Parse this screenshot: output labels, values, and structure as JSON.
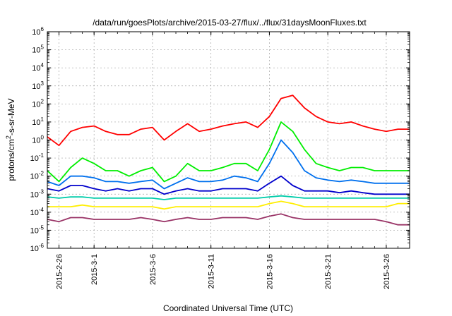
{
  "chart_data": {
    "type": "line",
    "title": "/data/run/goesPlots/archive/2015-03-27/flux/../flux/31daysMoonFluxes.txt",
    "xlabel": "Coordinated Universal Time (UTC)",
    "ylabel_parts": {
      "pre": "protons/cm",
      "sup": "2",
      "post": "-s-sr-MeV"
    },
    "x_range": [
      "2015-02-25",
      "2015-03-28"
    ],
    "x_ticks": [
      "2015-2-26",
      "2015-3-1",
      "2015-3-6",
      "2015-3-11",
      "2015-3-16",
      "2015-3-21",
      "2015-3-26"
    ],
    "y_scale": "log",
    "ylim": [
      1e-06,
      1000000.0
    ],
    "y_ticks": [
      {
        "base": "10",
        "exp": "-6"
      },
      {
        "base": "10",
        "exp": "-5"
      },
      {
        "base": "10",
        "exp": "-4"
      },
      {
        "base": "10",
        "exp": "-3"
      },
      {
        "base": "10",
        "exp": "-2"
      },
      {
        "base": "10",
        "exp": "-1"
      },
      {
        "base": "10",
        "exp": "0"
      },
      {
        "base": "10",
        "exp": "1"
      },
      {
        "base": "10",
        "exp": "2"
      },
      {
        "base": "10",
        "exp": "3"
      },
      {
        "base": "10",
        "exp": "4"
      },
      {
        "base": "10",
        "exp": "5"
      },
      {
        "base": "10",
        "exp": "6"
      }
    ],
    "grid": true,
    "series": [
      {
        "color": "#ff0000",
        "x": [
          "2015-02-25",
          "2015-02-26",
          "2015-02-27",
          "2015-02-28",
          "2015-03-01",
          "2015-03-02",
          "2015-03-03",
          "2015-03-04",
          "2015-03-05",
          "2015-03-06",
          "2015-03-07",
          "2015-03-08",
          "2015-03-09",
          "2015-03-10",
          "2015-03-11",
          "2015-03-12",
          "2015-03-13",
          "2015-03-14",
          "2015-03-15",
          "2015-03-16",
          "2015-03-17",
          "2015-03-18",
          "2015-03-19",
          "2015-03-20",
          "2015-03-21",
          "2015-03-22",
          "2015-03-23",
          "2015-03-24",
          "2015-03-25",
          "2015-03-26",
          "2015-03-27",
          "2015-03-28"
        ],
        "y": [
          1.5,
          0.5,
          3,
          5,
          6,
          3,
          2,
          2,
          4,
          5,
          1,
          3,
          8,
          3,
          4,
          6,
          8,
          10,
          5,
          20,
          200,
          300,
          60,
          20,
          10,
          8,
          10,
          6,
          4,
          3,
          4,
          4
        ]
      },
      {
        "color": "#00ee00",
        "x": [
          "2015-02-25",
          "2015-02-26",
          "2015-02-27",
          "2015-02-28",
          "2015-03-01",
          "2015-03-02",
          "2015-03-03",
          "2015-03-04",
          "2015-03-05",
          "2015-03-06",
          "2015-03-07",
          "2015-03-08",
          "2015-03-09",
          "2015-03-10",
          "2015-03-11",
          "2015-03-12",
          "2015-03-13",
          "2015-03-14",
          "2015-03-15",
          "2015-03-16",
          "2015-03-17",
          "2015-03-18",
          "2015-03-19",
          "2015-03-20",
          "2015-03-21",
          "2015-03-22",
          "2015-03-23",
          "2015-03-24",
          "2015-03-25",
          "2015-03-26",
          "2015-03-27",
          "2015-03-28"
        ],
        "y": [
          0.02,
          0.005,
          0.03,
          0.1,
          0.05,
          0.02,
          0.02,
          0.01,
          0.02,
          0.03,
          0.005,
          0.01,
          0.05,
          0.02,
          0.02,
          0.03,
          0.05,
          0.05,
          0.02,
          0.3,
          10,
          3,
          0.3,
          0.05,
          0.03,
          0.02,
          0.03,
          0.03,
          0.02,
          0.02,
          0.02,
          0.02
        ]
      },
      {
        "color": "#0070ee",
        "x": [
          "2015-02-25",
          "2015-02-26",
          "2015-02-27",
          "2015-02-28",
          "2015-03-01",
          "2015-03-02",
          "2015-03-03",
          "2015-03-04",
          "2015-03-05",
          "2015-03-06",
          "2015-03-07",
          "2015-03-08",
          "2015-03-09",
          "2015-03-10",
          "2015-03-11",
          "2015-03-12",
          "2015-03-13",
          "2015-03-14",
          "2015-03-15",
          "2015-03-16",
          "2015-03-17",
          "2015-03-18",
          "2015-03-19",
          "2015-03-20",
          "2015-03-21",
          "2015-03-22",
          "2015-03-23",
          "2015-03-24",
          "2015-03-25",
          "2015-03-26",
          "2015-03-27",
          "2015-03-28"
        ],
        "y": [
          0.005,
          0.003,
          0.01,
          0.01,
          0.008,
          0.005,
          0.005,
          0.004,
          0.005,
          0.006,
          0.002,
          0.004,
          0.008,
          0.005,
          0.005,
          0.006,
          0.01,
          0.008,
          0.005,
          0.05,
          1,
          0.2,
          0.02,
          0.008,
          0.006,
          0.005,
          0.006,
          0.005,
          0.004,
          0.004,
          0.004,
          0.004
        ]
      },
      {
        "color": "#0000cc",
        "x": [
          "2015-02-25",
          "2015-02-26",
          "2015-02-27",
          "2015-02-28",
          "2015-03-01",
          "2015-03-02",
          "2015-03-03",
          "2015-03-04",
          "2015-03-05",
          "2015-03-06",
          "2015-03-07",
          "2015-03-08",
          "2015-03-09",
          "2015-03-10",
          "2015-03-11",
          "2015-03-12",
          "2015-03-13",
          "2015-03-14",
          "2015-03-15",
          "2015-03-16",
          "2015-03-17",
          "2015-03-18",
          "2015-03-19",
          "2015-03-20",
          "2015-03-21",
          "2015-03-22",
          "2015-03-23",
          "2015-03-24",
          "2015-03-25",
          "2015-03-26",
          "2015-03-27",
          "2015-03-28"
        ],
        "y": [
          0.002,
          0.0015,
          0.003,
          0.003,
          0.002,
          0.0015,
          0.002,
          0.0015,
          0.002,
          0.002,
          0.001,
          0.0015,
          0.002,
          0.0015,
          0.0015,
          0.002,
          0.002,
          0.002,
          0.0015,
          0.004,
          0.01,
          0.003,
          0.0015,
          0.0015,
          0.0015,
          0.0012,
          0.0015,
          0.0012,
          0.001,
          0.001,
          0.001,
          0.001
        ]
      },
      {
        "color": "#00ccaa",
        "x": [
          "2015-02-25",
          "2015-02-26",
          "2015-02-27",
          "2015-02-28",
          "2015-03-01",
          "2015-03-02",
          "2015-03-03",
          "2015-03-04",
          "2015-03-05",
          "2015-03-06",
          "2015-03-07",
          "2015-03-08",
          "2015-03-09",
          "2015-03-10",
          "2015-03-11",
          "2015-03-12",
          "2015-03-13",
          "2015-03-14",
          "2015-03-15",
          "2015-03-16",
          "2015-03-17",
          "2015-03-18",
          "2015-03-19",
          "2015-03-20",
          "2015-03-21",
          "2015-03-22",
          "2015-03-23",
          "2015-03-24",
          "2015-03-25",
          "2015-03-26",
          "2015-03-27",
          "2015-03-28"
        ],
        "y": [
          0.0007,
          0.0006,
          0.0007,
          0.0007,
          0.0006,
          0.0006,
          0.0006,
          0.0006,
          0.0006,
          0.0006,
          0.0005,
          0.0006,
          0.0006,
          0.0006,
          0.0006,
          0.0006,
          0.0006,
          0.0006,
          0.0006,
          0.0007,
          0.0008,
          0.0007,
          0.0006,
          0.0006,
          0.0006,
          0.0006,
          0.0006,
          0.0006,
          0.0006,
          0.0006,
          0.0006,
          0.0006
        ]
      },
      {
        "color": "#ffee00",
        "x": [
          "2015-02-25",
          "2015-02-26",
          "2015-02-27",
          "2015-02-28",
          "2015-03-01",
          "2015-03-02",
          "2015-03-03",
          "2015-03-04",
          "2015-03-05",
          "2015-03-06",
          "2015-03-07",
          "2015-03-08",
          "2015-03-09",
          "2015-03-10",
          "2015-03-11",
          "2015-03-12",
          "2015-03-13",
          "2015-03-14",
          "2015-03-15",
          "2015-03-16",
          "2015-03-17",
          "2015-03-18",
          "2015-03-19",
          "2015-03-20",
          "2015-03-21",
          "2015-03-22",
          "2015-03-23",
          "2015-03-24",
          "2015-03-25",
          "2015-03-26",
          "2015-03-27",
          "2015-03-28"
        ],
        "y": [
          0.0002,
          0.0002,
          0.0002,
          0.00025,
          0.0002,
          0.0002,
          0.0002,
          0.0002,
          0.0002,
          0.0002,
          0.00015,
          0.0002,
          0.0002,
          0.0002,
          0.0002,
          0.0002,
          0.0002,
          0.0002,
          0.0002,
          0.0003,
          0.0004,
          0.0003,
          0.0002,
          0.0002,
          0.0002,
          0.0002,
          0.0002,
          0.0002,
          0.0002,
          0.0002,
          0.0003,
          0.0003
        ]
      },
      {
        "color": "#993366",
        "x": [
          "2015-02-25",
          "2015-02-26",
          "2015-02-27",
          "2015-02-28",
          "2015-03-01",
          "2015-03-02",
          "2015-03-03",
          "2015-03-04",
          "2015-03-05",
          "2015-03-06",
          "2015-03-07",
          "2015-03-08",
          "2015-03-09",
          "2015-03-10",
          "2015-03-11",
          "2015-03-12",
          "2015-03-13",
          "2015-03-14",
          "2015-03-15",
          "2015-03-16",
          "2015-03-17",
          "2015-03-18",
          "2015-03-19",
          "2015-03-20",
          "2015-03-21",
          "2015-03-22",
          "2015-03-23",
          "2015-03-24",
          "2015-03-25",
          "2015-03-26",
          "2015-03-27",
          "2015-03-28"
        ],
        "y": [
          4e-05,
          3e-05,
          5e-05,
          5e-05,
          4e-05,
          4e-05,
          4e-05,
          4e-05,
          5e-05,
          4e-05,
          3e-05,
          4e-05,
          5e-05,
          4e-05,
          4e-05,
          5e-05,
          5e-05,
          5e-05,
          4e-05,
          6e-05,
          8e-05,
          5e-05,
          4e-05,
          4e-05,
          4e-05,
          4e-05,
          4e-05,
          4e-05,
          4e-05,
          3e-05,
          2e-05,
          2e-05
        ]
      }
    ]
  }
}
